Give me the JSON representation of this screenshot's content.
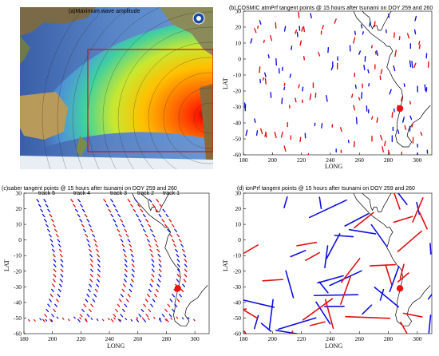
{
  "panels": {
    "a": {
      "title": "(a)Maximum wave amplitude"
    },
    "b": {
      "title": "(b) COSMIC atmPrf tangent points @ 15 hours after tsunami on DOY 259 and 260",
      "ylabel": "LAT",
      "xlabel": "LONG"
    },
    "c": {
      "title": "(c)saber tangent points @ 15 hours after tsunami on DOY 259 and 260",
      "ylabel": "LAT",
      "xlabel": "LONG",
      "tracks": [
        "track 5",
        "track 4",
        "track 3",
        "track 2",
        "track 1"
      ]
    },
    "d": {
      "title": "(d) ionPrf tangent points @ 15 hours after tsunami on DOY 259 and 260",
      "ylabel": "LAT",
      "xlabel": "LONG"
    }
  },
  "colors": {
    "day259": "#e01010",
    "day260": "#1010e0",
    "epicenter": "#ee1111"
  },
  "chart_data": [
    {
      "panel": "b",
      "type": "scatter",
      "title": "(b) COSMIC atmPrf tangent points @ 15 hours after tsunami on DOY 259 and 260",
      "xlabel": "LONG",
      "ylabel": "LAT",
      "xlim": [
        180,
        310
      ],
      "ylim": [
        -60,
        30
      ],
      "xticks": [
        180,
        200,
        220,
        240,
        260,
        280,
        300
      ],
      "yticks": [
        -60,
        -50,
        -40,
        -30,
        -20,
        -10,
        0,
        10,
        20,
        30
      ],
      "epicenter": {
        "x": 288,
        "y": -31
      }
    },
    {
      "panel": "c",
      "type": "scatter",
      "title": "(c)saber tangent points @ 15 hours after tsunami on DOY 259 and 260",
      "xlabel": "LONG",
      "ylabel": "LAT",
      "xlim": [
        180,
        310
      ],
      "ylim": [
        -60,
        30
      ],
      "xticks": [
        180,
        200,
        220,
        240,
        260,
        280,
        300
      ],
      "yticks": [
        -60,
        -50,
        -40,
        -30,
        -20,
        -10,
        0,
        10,
        20,
        30
      ],
      "epicenter": {
        "x": 288,
        "y": -31
      }
    },
    {
      "panel": "d",
      "type": "scatter",
      "title": "(d) ionPrf tangent points @ 15 hours after tsunami on DOY 259 and 260",
      "xlabel": "LONG",
      "ylabel": "LAT",
      "xlim": [
        180,
        310
      ],
      "ylim": [
        -60,
        30
      ],
      "xticks": [
        180,
        200,
        220,
        240,
        260,
        280,
        300
      ],
      "yticks": [
        -60,
        -50,
        -40,
        -30,
        -20,
        -10,
        0,
        10,
        20,
        30
      ],
      "epicenter": {
        "x": 288,
        "y": -31
      }
    }
  ]
}
